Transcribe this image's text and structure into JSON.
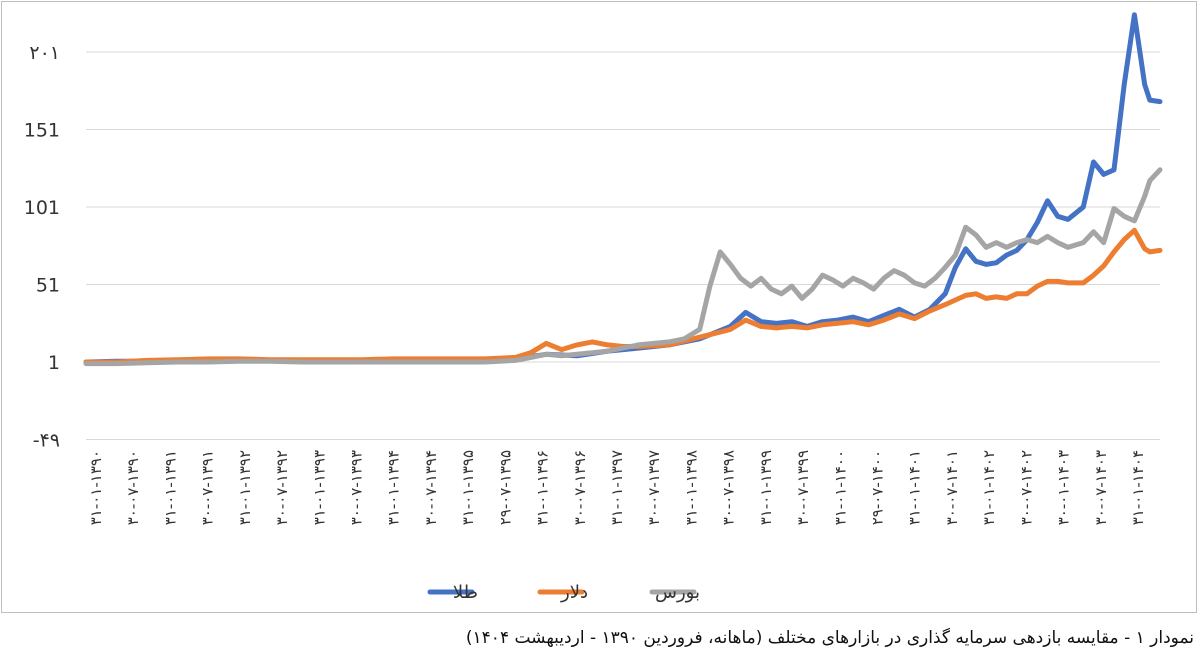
{
  "chart_data": {
    "type": "line",
    "title": "",
    "xlabel": "",
    "ylabel": "",
    "ylim": [
      -49,
      230
    ],
    "yticks": [
      "۲۰۱",
      "151",
      "101",
      "51",
      "1",
      "-۴۹"
    ],
    "ytick_values": [
      201,
      151,
      101,
      51,
      1,
      -49
    ],
    "grid": true,
    "legend_position": "bottom",
    "x_tick_labels": [
      "۳۱-۰۱-۱۳۹۰",
      "۳۰-۰۷-۱۳۹۰",
      "۳۱-۰۱-۱۳۹۱",
      "۳۰-۰۷-۱۳۹۱",
      "۳۱-۰۱-۱۳۹۲",
      "۳۰-۰۷-۱۳۹۲",
      "۳۱-۰۱-۱۳۹۳",
      "۳۰-۰۷-۱۳۹۳",
      "۳۱-۰۱-۱۳۹۴",
      "۳۰-۰۷-۱۳۹۴",
      "۳۱-۰۱-۱۳۹۵",
      "۲۹-۰۷-۱۳۹۵",
      "۳۱-۰۱-۱۳۹۶",
      "۳۰-۰۷-۱۳۹۶",
      "۳۱-۰۱-۱۳۹۷",
      "۳۰-۰۷-۱۳۹۷",
      "۳۱-۰۱-۱۳۹۸",
      "۳۰-۰۷-۱۳۹۸",
      "۳۱-۰۱-۱۳۹۹",
      "۳۰-۰۷-۱۳۹۹",
      "۳۱-۰۱-۱۴۰۰",
      "۲۹-۰۷-۱۴۰۰",
      "۳۱-۰۱-۱۴۰۱",
      "۳۰-۰۷-۱۴۰۱",
      "۳۱-۰۱-۱۴۰۲",
      "۳۰-۰۷-۱۴۰۲",
      "۳۰-۰۱-۱۴۰۳",
      "۳۰-۰۷-۱۴۰۳",
      "۳۱-۰۱-۱۴۰۴"
    ],
    "series": [
      {
        "name": "طلا",
        "color": "#4472c4",
        "points": [
          [
            0,
            1
          ],
          [
            6,
            1.5
          ],
          [
            12,
            1.5
          ],
          [
            18,
            2
          ],
          [
            24,
            2.5
          ],
          [
            30,
            2.5
          ],
          [
            36,
            2
          ],
          [
            42,
            2
          ],
          [
            48,
            2
          ],
          [
            54,
            2
          ],
          [
            60,
            2
          ],
          [
            66,
            2
          ],
          [
            72,
            2
          ],
          [
            78,
            2.2
          ],
          [
            84,
            3
          ],
          [
            90,
            6
          ],
          [
            96,
            5
          ],
          [
            102,
            8
          ],
          [
            108,
            10
          ],
          [
            114,
            12
          ],
          [
            120,
            16
          ],
          [
            126,
            24
          ],
          [
            129,
            33
          ],
          [
            132,
            27
          ],
          [
            135,
            26
          ],
          [
            138,
            27
          ],
          [
            141,
            24
          ],
          [
            144,
            27
          ],
          [
            147,
            28
          ],
          [
            150,
            30
          ],
          [
            153,
            27
          ],
          [
            156,
            31
          ],
          [
            159,
            35
          ],
          [
            162,
            30
          ],
          [
            165,
            35
          ],
          [
            168,
            45
          ],
          [
            170,
            62
          ],
          [
            172,
            74
          ],
          [
            174,
            66
          ],
          [
            176,
            64
          ],
          [
            178,
            65
          ],
          [
            180,
            70
          ],
          [
            182,
            73
          ],
          [
            184,
            80
          ],
          [
            186,
            91
          ],
          [
            188,
            105
          ],
          [
            190,
            95
          ],
          [
            192,
            93
          ],
          [
            195,
            101
          ],
          [
            197,
            130
          ],
          [
            199,
            122
          ],
          [
            201,
            125
          ],
          [
            203,
            180
          ],
          [
            205,
            225
          ],
          [
            207,
            180
          ],
          [
            208,
            170
          ],
          [
            210,
            169
          ]
        ]
      },
      {
        "name": "دلار",
        "color": "#ed7d31",
        "points": [
          [
            0,
            1
          ],
          [
            6,
            1
          ],
          [
            12,
            2
          ],
          [
            18,
            2.5
          ],
          [
            24,
            3
          ],
          [
            30,
            3
          ],
          [
            36,
            2.5
          ],
          [
            42,
            2.5
          ],
          [
            48,
            2.5
          ],
          [
            54,
            2.5
          ],
          [
            60,
            3
          ],
          [
            66,
            3
          ],
          [
            72,
            3
          ],
          [
            78,
            3
          ],
          [
            84,
            4
          ],
          [
            87,
            7
          ],
          [
            90,
            13
          ],
          [
            93,
            9
          ],
          [
            96,
            12
          ],
          [
            99,
            14
          ],
          [
            102,
            12
          ],
          [
            105,
            11
          ],
          [
            108,
            11
          ],
          [
            114,
            12
          ],
          [
            120,
            17
          ],
          [
            126,
            22
          ],
          [
            129,
            28
          ],
          [
            132,
            24
          ],
          [
            135,
            23
          ],
          [
            138,
            24
          ],
          [
            141,
            23
          ],
          [
            144,
            25
          ],
          [
            147,
            26
          ],
          [
            150,
            27
          ],
          [
            153,
            25
          ],
          [
            156,
            28
          ],
          [
            159,
            32
          ],
          [
            162,
            29
          ],
          [
            165,
            34
          ],
          [
            168,
            38
          ],
          [
            170,
            41
          ],
          [
            172,
            44
          ],
          [
            174,
            45
          ],
          [
            176,
            42
          ],
          [
            178,
            43
          ],
          [
            180,
            42
          ],
          [
            182,
            45
          ],
          [
            184,
            45
          ],
          [
            186,
            50
          ],
          [
            188,
            53
          ],
          [
            190,
            53
          ],
          [
            192,
            52
          ],
          [
            195,
            52
          ],
          [
            197,
            57
          ],
          [
            199,
            63
          ],
          [
            201,
            72
          ],
          [
            203,
            80
          ],
          [
            205,
            86
          ],
          [
            207,
            74
          ],
          [
            208,
            72
          ],
          [
            210,
            73
          ]
        ]
      },
      {
        "name": "بورس",
        "color": "#a5a5a5",
        "points": [
          [
            0,
            0
          ],
          [
            6,
            0
          ],
          [
            12,
            0.5
          ],
          [
            18,
            1
          ],
          [
            24,
            1
          ],
          [
            30,
            1.5
          ],
          [
            36,
            1.5
          ],
          [
            42,
            1
          ],
          [
            48,
            1
          ],
          [
            54,
            1
          ],
          [
            60,
            1
          ],
          [
            66,
            1
          ],
          [
            72,
            1
          ],
          [
            78,
            1
          ],
          [
            84,
            2
          ],
          [
            87,
            4
          ],
          [
            90,
            6
          ],
          [
            93,
            5
          ],
          [
            96,
            6
          ],
          [
            99,
            7
          ],
          [
            102,
            8
          ],
          [
            105,
            10
          ],
          [
            108,
            12
          ],
          [
            111,
            13
          ],
          [
            114,
            14
          ],
          [
            117,
            16
          ],
          [
            120,
            22
          ],
          [
            122,
            50
          ],
          [
            124,
            72
          ],
          [
            126,
            64
          ],
          [
            128,
            55
          ],
          [
            130,
            50
          ],
          [
            132,
            55
          ],
          [
            134,
            48
          ],
          [
            136,
            45
          ],
          [
            138,
            50
          ],
          [
            140,
            42
          ],
          [
            142,
            48
          ],
          [
            144,
            57
          ],
          [
            146,
            54
          ],
          [
            148,
            50
          ],
          [
            150,
            55
          ],
          [
            152,
            52
          ],
          [
            154,
            48
          ],
          [
            156,
            55
          ],
          [
            158,
            60
          ],
          [
            160,
            57
          ],
          [
            162,
            52
          ],
          [
            164,
            50
          ],
          [
            166,
            55
          ],
          [
            168,
            62
          ],
          [
            170,
            70
          ],
          [
            172,
            88
          ],
          [
            174,
            83
          ],
          [
            176,
            75
          ],
          [
            178,
            78
          ],
          [
            180,
            75
          ],
          [
            182,
            78
          ],
          [
            184,
            80
          ],
          [
            186,
            78
          ],
          [
            188,
            82
          ],
          [
            190,
            78
          ],
          [
            192,
            75
          ],
          [
            195,
            78
          ],
          [
            197,
            85
          ],
          [
            199,
            78
          ],
          [
            201,
            100
          ],
          [
            203,
            95
          ],
          [
            205,
            92
          ],
          [
            207,
            108
          ],
          [
            208,
            118
          ],
          [
            210,
            125
          ]
        ]
      }
    ]
  },
  "caption": "نمودار ۱ - مقایسه بازدهی سرمایه گذاری در بازارهای مختلف (ماهانه، فروردین ۱۳۹۰ - اردیبهشت ۱۴۰۴)"
}
